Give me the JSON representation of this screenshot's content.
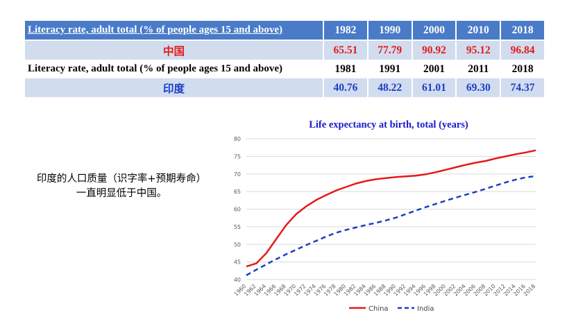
{
  "table": {
    "header_label": "Literacy rate, adult total (% of people ages 15 and above)",
    "header_years": [
      "1982",
      "1990",
      "2000",
      "2010",
      "2018"
    ],
    "china_name": "中国",
    "china_values": [
      "65.51",
      "77.79",
      "90.92",
      "95.12",
      "96.84"
    ],
    "sub_label": "Literacy rate, adult total (% of people ages 15 and above)",
    "sub_years": [
      "1981",
      "1991",
      "2001",
      "2011",
      "2018"
    ],
    "india_name": "印度",
    "india_values": [
      "40.76",
      "48.22",
      "61.01",
      "69.30",
      "74.37"
    ]
  },
  "note": {
    "line1": "印度的人口质量（识字率+预期寿命）",
    "line2": "一直明显低于中国。"
  },
  "colors": {
    "china": "#e41a1a",
    "india": "#1a3fc4"
  },
  "chart_data": {
    "type": "line",
    "title": "Life expectancy at birth, total (years)",
    "xlabel": "",
    "ylabel": "",
    "ylim": [
      40,
      80
    ],
    "yticks": [
      40,
      45,
      50,
      55,
      60,
      65,
      70,
      75,
      80
    ],
    "x": [
      1960,
      1962,
      1964,
      1966,
      1968,
      1970,
      1972,
      1974,
      1976,
      1978,
      1980,
      1982,
      1984,
      1986,
      1988,
      1990,
      1992,
      1994,
      1996,
      1998,
      2000,
      2002,
      2004,
      2006,
      2008,
      2010,
      2012,
      2014,
      2016,
      2018
    ],
    "xtick_labels": [
      "1960",
      "1962",
      "1964",
      "1966",
      "1968",
      "1970",
      "1972",
      "1974",
      "1976",
      "1978",
      "1980",
      "1982",
      "1984",
      "1986",
      "1988",
      "1990",
      "1992",
      "1994",
      "1996",
      "1998",
      "2000",
      "2002",
      "2004",
      "2006",
      "2008",
      "2010",
      "2012",
      "2014",
      "2016",
      "2018"
    ],
    "series": [
      {
        "name": "China",
        "style": "solid",
        "values": [
          43.7,
          44.6,
          47.5,
          51.5,
          55.5,
          58.6,
          60.8,
          62.6,
          64.0,
          65.3,
          66.3,
          67.3,
          68.0,
          68.5,
          68.8,
          69.1,
          69.3,
          69.5,
          69.9,
          70.5,
          71.2,
          71.9,
          72.6,
          73.2,
          73.7,
          74.4,
          75.0,
          75.6,
          76.1,
          76.7
        ]
      },
      {
        "name": "India",
        "style": "dashed",
        "values": [
          41.2,
          42.8,
          44.3,
          45.8,
          47.2,
          48.5,
          49.8,
          51.0,
          52.2,
          53.3,
          54.1,
          54.8,
          55.5,
          56.1,
          56.8,
          57.6,
          58.6,
          59.6,
          60.6,
          61.5,
          62.4,
          63.3,
          64.1,
          64.9,
          65.8,
          66.7,
          67.6,
          68.4,
          69.0,
          69.4
        ]
      }
    ],
    "legend": [
      "China",
      "India"
    ]
  }
}
